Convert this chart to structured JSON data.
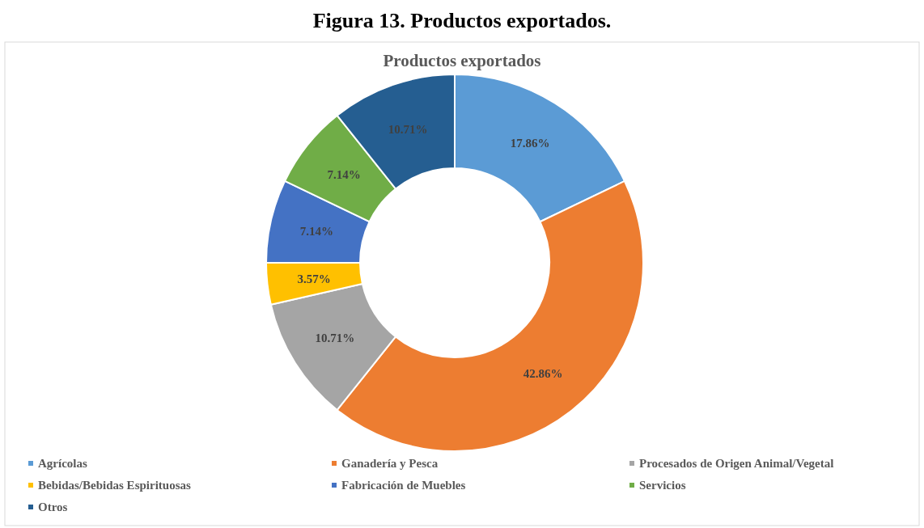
{
  "chart_data": {
    "type": "donut",
    "title": "Figura 13. Productos exportados.",
    "subtitle": "Productos exportados",
    "categories": [
      "Agrícolas",
      "Ganadería y Pesca",
      "Procesados de Origen Animal/Vegetal",
      "Bebidas/Bebidas Espirituosas",
      "Fabricación de Muebles",
      "Servicios",
      "Otros"
    ],
    "values": [
      17.86,
      42.86,
      10.71,
      3.57,
      7.14,
      7.14,
      10.71
    ],
    "colors": [
      "#5b9bd5",
      "#ed7d31",
      "#a5a5a5",
      "#ffc000",
      "#4472c4",
      "#70ad47",
      "#255e91"
    ],
    "value_labels": [
      "17.86%",
      "42.86%",
      "10.71%",
      "3.57%",
      "7.14%",
      "7.14%",
      "10.71%"
    ],
    "legend": "bottom"
  }
}
